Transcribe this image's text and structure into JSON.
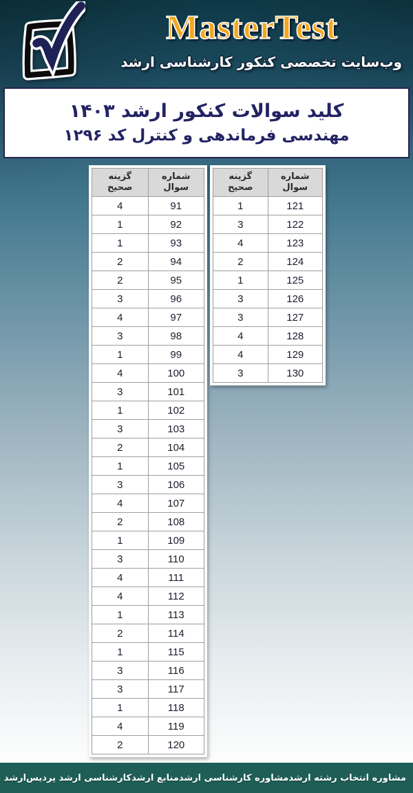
{
  "header": {
    "brand": "MasterTest",
    "subtitle": "وب‌سایت تخصصی کنکور کارشناسی ارشد",
    "logo_icon": "checkbox-checkmark-icon"
  },
  "title_box": {
    "line1": "کلید سوالات کنکور ارشد ۱۴۰۳",
    "line2": "مهندسی فرماندهی و کنترل کد ۱۲۹۶"
  },
  "answer_tables": [
    {
      "columns": [
        "شماره سوال",
        "گزینه صحیح"
      ],
      "rows": [
        [
          91,
          4
        ],
        [
          92,
          1
        ],
        [
          93,
          1
        ],
        [
          94,
          2
        ],
        [
          95,
          2
        ],
        [
          96,
          3
        ],
        [
          97,
          4
        ],
        [
          98,
          3
        ],
        [
          99,
          1
        ],
        [
          100,
          4
        ],
        [
          101,
          3
        ],
        [
          102,
          1
        ],
        [
          103,
          3
        ],
        [
          104,
          2
        ],
        [
          105,
          1
        ],
        [
          106,
          3
        ],
        [
          107,
          4
        ],
        [
          108,
          2
        ],
        [
          109,
          1
        ],
        [
          110,
          3
        ],
        [
          111,
          4
        ],
        [
          112,
          4
        ],
        [
          113,
          1
        ],
        [
          114,
          2
        ],
        [
          115,
          1
        ],
        [
          116,
          3
        ],
        [
          117,
          3
        ],
        [
          118,
          1
        ],
        [
          119,
          4
        ],
        [
          120,
          2
        ]
      ]
    },
    {
      "columns": [
        "شماره سوال",
        "گزینه صحیح"
      ],
      "rows": [
        [
          121,
          1
        ],
        [
          122,
          3
        ],
        [
          123,
          4
        ],
        [
          124,
          2
        ],
        [
          125,
          1
        ],
        [
          126,
          3
        ],
        [
          127,
          3
        ],
        [
          128,
          4
        ],
        [
          129,
          4
        ],
        [
          130,
          3
        ]
      ]
    }
  ],
  "footer": {
    "links": [
      "مشاوره انتخاب رشته ارشد",
      "مشاوره کارشناسی ارشد",
      "منابع ارشد",
      "کارشناسی ارشد پردیس",
      "ارشد بدون کنکور"
    ]
  },
  "colors": {
    "brand_gold": "#f2a71f",
    "header_teal_dark": "#0e3845",
    "footer_teal": "#1e5e56",
    "title_navy": "#232364",
    "table_header_bg": "#d9d9d9",
    "table_border": "#9e9e9e",
    "check_navy": "#1d2156"
  }
}
